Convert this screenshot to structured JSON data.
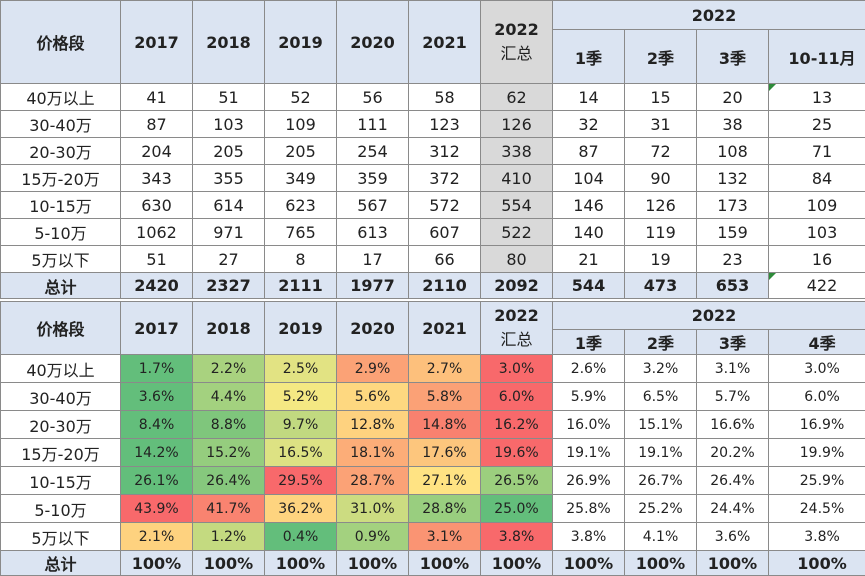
{
  "table1": {
    "header": {
      "label": "价格段",
      "years": [
        "2017",
        "2018",
        "2019",
        "2020",
        "2021"
      ],
      "y2022_line1": "2022",
      "y2022_line2": "汇总",
      "group": "2022",
      "quarters": [
        "1季",
        "2季",
        "3季",
        "10-11月"
      ]
    },
    "rows": [
      {
        "label": "40万以上",
        "vals": [
          "41",
          "51",
          "52",
          "56",
          "58",
          "62",
          "14",
          "15",
          "20",
          "13"
        ]
      },
      {
        "label": "30-40万",
        "vals": [
          "87",
          "103",
          "109",
          "111",
          "123",
          "126",
          "32",
          "31",
          "38",
          "25"
        ]
      },
      {
        "label": "20-30万",
        "vals": [
          "204",
          "205",
          "205",
          "254",
          "312",
          "338",
          "87",
          "72",
          "108",
          "71"
        ]
      },
      {
        "label": "15万-20万",
        "vals": [
          "343",
          "355",
          "349",
          "359",
          "372",
          "410",
          "104",
          "90",
          "132",
          "84"
        ]
      },
      {
        "label": "10-15万",
        "vals": [
          "630",
          "614",
          "623",
          "567",
          "572",
          "554",
          "146",
          "126",
          "173",
          "109"
        ]
      },
      {
        "label": "5-10万",
        "vals": [
          "1062",
          "971",
          "765",
          "613",
          "607",
          "522",
          "140",
          "119",
          "159",
          "103"
        ]
      },
      {
        "label": "5万以下",
        "vals": [
          "51",
          "27",
          "8",
          "17",
          "66",
          "80",
          "21",
          "19",
          "23",
          "16"
        ]
      }
    ],
    "total": {
      "label": "总计",
      "vals": [
        "2420",
        "2327",
        "2111",
        "1977",
        "2110",
        "2092",
        "544",
        "473",
        "653",
        "422"
      ]
    }
  },
  "table2": {
    "header": {
      "label": "价格段",
      "years": [
        "2017",
        "2018",
        "2019",
        "2020",
        "2021"
      ],
      "y2022_line1": "2022",
      "y2022_line2": "汇总",
      "group": "2022",
      "quarters": [
        "1季",
        "2季",
        "3季",
        "4季"
      ]
    },
    "rows": [
      {
        "label": "40万以上",
        "vals": [
          "1.7%",
          "2.2%",
          "2.5%",
          "2.9%",
          "2.7%",
          "3.0%",
          "2.6%",
          "3.2%",
          "3.1%",
          "3.0%"
        ],
        "colors": [
          "#63be7b",
          "#a9d27f",
          "#e2e383",
          "#fba276",
          "#fdc07c",
          "#f8696b"
        ]
      },
      {
        "label": "30-40万",
        "vals": [
          "3.6%",
          "4.4%",
          "5.2%",
          "5.6%",
          "5.8%",
          "6.0%",
          "5.9%",
          "6.5%",
          "5.7%",
          "6.0%"
        ],
        "colors": [
          "#63be7b",
          "#a3d17f",
          "#f4e883",
          "#fed880",
          "#fba176",
          "#f8696b"
        ]
      },
      {
        "label": "20-30万",
        "vals": [
          "8.4%",
          "8.8%",
          "9.7%",
          "12.8%",
          "14.8%",
          "16.2%",
          "16.0%",
          "15.1%",
          "16.6%",
          "16.9%"
        ],
        "colors": [
          "#63be7b",
          "#7fc67c",
          "#c1d980",
          "#fed27f",
          "#f9816f",
          "#f8696b"
        ]
      },
      {
        "label": "15万-20万",
        "vals": [
          "14.2%",
          "15.2%",
          "16.5%",
          "18.1%",
          "17.6%",
          "19.6%",
          "19.1%",
          "19.1%",
          "20.2%",
          "19.9%"
        ],
        "colors": [
          "#63be7b",
          "#95cd7e",
          "#dde283",
          "#fcad78",
          "#fdc67d",
          "#f8696b"
        ]
      },
      {
        "label": "10-15万",
        "vals": [
          "26.1%",
          "26.4%",
          "29.5%",
          "28.7%",
          "27.1%",
          "26.5%",
          "26.9%",
          "26.7%",
          "26.4%",
          "25.9%"
        ],
        "colors": [
          "#63be7b",
          "#86c87d",
          "#f8696b",
          "#fba276",
          "#ffe383",
          "#9ccf7e"
        ]
      },
      {
        "label": "5-10万",
        "vals": [
          "43.9%",
          "41.7%",
          "36.2%",
          "31.0%",
          "28.8%",
          "25.0%",
          "25.8%",
          "25.2%",
          "24.4%",
          "24.5%"
        ],
        "colors": [
          "#f8696b",
          "#f98370",
          "#fed47f",
          "#ccdc81",
          "#99ce7f",
          "#63be7b"
        ]
      },
      {
        "label": "5万以下",
        "vals": [
          "2.1%",
          "1.2%",
          "0.4%",
          "0.9%",
          "3.1%",
          "3.8%",
          "3.8%",
          "4.1%",
          "3.6%",
          "3.8%"
        ],
        "colors": [
          "#fed27f",
          "#c4da80",
          "#63be7b",
          "#a3d17f",
          "#fa9473",
          "#f8696b"
        ]
      }
    ],
    "total": {
      "label": "总计",
      "vals": [
        "100%",
        "100%",
        "100%",
        "100%",
        "100%",
        "100%",
        "100%",
        "100%",
        "100%",
        "100%"
      ]
    }
  },
  "chart_data": [
    {
      "type": "table",
      "columns": [
        "价格段",
        "2017",
        "2018",
        "2019",
        "2020",
        "2021",
        "2022 汇总",
        "1季",
        "2季",
        "3季",
        "10-11月"
      ],
      "rows": [
        [
          "40万以上",
          41,
          51,
          52,
          56,
          58,
          62,
          14,
          15,
          20,
          13
        ],
        [
          "30-40万",
          87,
          103,
          109,
          111,
          123,
          126,
          32,
          31,
          38,
          25
        ],
        [
          "20-30万",
          204,
          205,
          205,
          254,
          312,
          338,
          87,
          72,
          108,
          71
        ],
        [
          "15万-20万",
          343,
          355,
          349,
          359,
          372,
          410,
          104,
          90,
          132,
          84
        ],
        [
          "10-15万",
          630,
          614,
          623,
          567,
          572,
          554,
          146,
          126,
          173,
          109
        ],
        [
          "5-10万",
          1062,
          971,
          765,
          613,
          607,
          522,
          140,
          119,
          159,
          103
        ],
        [
          "5万以下",
          51,
          27,
          8,
          17,
          66,
          80,
          21,
          19,
          23,
          16
        ],
        [
          "总计",
          2420,
          2327,
          2111,
          1977,
          2110,
          2092,
          544,
          473,
          653,
          422
        ]
      ]
    },
    {
      "type": "heatmap",
      "columns": [
        "价格段",
        "2017",
        "2018",
        "2019",
        "2020",
        "2021",
        "2022 汇总",
        "1季",
        "2季",
        "3季",
        "4季"
      ],
      "rows": [
        [
          "40万以上",
          1.7,
          2.2,
          2.5,
          2.9,
          2.7,
          3.0,
          2.6,
          3.2,
          3.1,
          3.0
        ],
        [
          "30-40万",
          3.6,
          4.4,
          5.2,
          5.6,
          5.8,
          6.0,
          5.9,
          6.5,
          5.7,
          6.0
        ],
        [
          "20-30万",
          8.4,
          8.8,
          9.7,
          12.8,
          14.8,
          16.2,
          16.0,
          15.1,
          16.6,
          16.9
        ],
        [
          "15万-20万",
          14.2,
          15.2,
          16.5,
          18.1,
          17.6,
          19.6,
          19.1,
          19.1,
          20.2,
          19.9
        ],
        [
          "10-15万",
          26.1,
          26.4,
          29.5,
          28.7,
          27.1,
          26.5,
          26.9,
          26.7,
          26.4,
          25.9
        ],
        [
          "5-10万",
          43.9,
          41.7,
          36.2,
          31.0,
          28.8,
          25.0,
          25.8,
          25.2,
          24.4,
          24.5
        ],
        [
          "5万以下",
          2.1,
          1.2,
          0.4,
          0.9,
          3.1,
          3.8,
          3.8,
          4.1,
          3.6,
          3.8
        ],
        [
          "总计",
          100,
          100,
          100,
          100,
          100,
          100,
          100,
          100,
          100,
          100
        ]
      ]
    }
  ]
}
